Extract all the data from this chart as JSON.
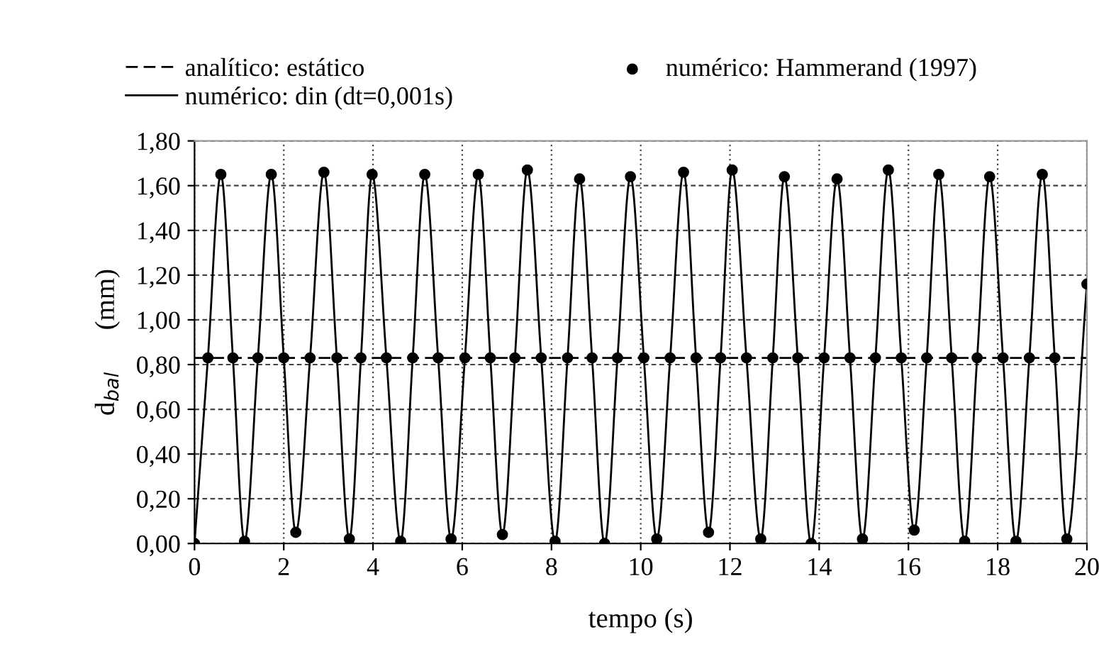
{
  "chart_data": {
    "type": "line",
    "xlabel": "tempo (s)",
    "ylabel": "d$_{bal}$      (mm)",
    "xlim": [
      0,
      20
    ],
    "xticks": [
      0,
      2,
      4,
      6,
      8,
      10,
      12,
      14,
      16,
      18,
      20
    ],
    "ylim": [
      0,
      1.8
    ],
    "yticks": [
      {
        "value": 0,
        "label": "0,00"
      },
      {
        "value": 0.2,
        "label": "0,20"
      },
      {
        "value": 0.4,
        "label": "0,40"
      },
      {
        "value": 0.6,
        "label": "0,60"
      },
      {
        "value": 0.8,
        "label": "0,80"
      },
      {
        "value": 1.0,
        "label": "1,00"
      },
      {
        "value": 1.2,
        "label": "1,20"
      },
      {
        "value": 1.4,
        "label": "1,40"
      },
      {
        "value": 1.6,
        "label": "1,60"
      },
      {
        "value": 1.8,
        "label": "1,80"
      }
    ],
    "grid": true,
    "legend": "top",
    "series": [
      {
        "name": "analítico: estático",
        "line_style": "dashed",
        "marker": "none",
        "color": "#000000",
        "x": [
          0,
          20
        ],
        "values": [
          0.83,
          0.83
        ]
      },
      {
        "name": "numérico: din (dt=0,001s)",
        "line_style": "solid",
        "marker": "none",
        "color": "#000000",
        "x": [
          0,
          0.3,
          0.59,
          0.86,
          1.12,
          1.42,
          1.72,
          2.0,
          2.27,
          2.59,
          2.9,
          3.19,
          3.47,
          3.73,
          3.98,
          4.3,
          4.62,
          4.89,
          5.16,
          5.46,
          5.75,
          6.06,
          6.36,
          6.63,
          6.9,
          7.18,
          7.46,
          7.77,
          8.08,
          8.36,
          8.63,
          8.91,
          9.19,
          9.48,
          9.77,
          10.07,
          10.36,
          10.66,
          10.96,
          11.24,
          11.52,
          11.79,
          12.05,
          12.37,
          12.69,
          12.96,
          13.22,
          13.52,
          13.82,
          14.11,
          14.4,
          14.69,
          14.97,
          15.26,
          15.55,
          15.84,
          16.13,
          16.41,
          16.68,
          16.97,
          17.26,
          17.54,
          17.82,
          18.12,
          18.41,
          18.71,
          19.0,
          19.28,
          19.55,
          20
        ],
        "values": [
          0.0,
          0.83,
          1.65,
          0.83,
          0.01,
          0.83,
          1.65,
          0.83,
          0.05,
          0.83,
          1.66,
          0.83,
          0.02,
          0.83,
          1.65,
          0.83,
          0.01,
          0.83,
          1.65,
          0.83,
          0.02,
          0.83,
          1.65,
          0.83,
          0.04,
          0.83,
          1.67,
          0.83,
          0.01,
          0.83,
          1.63,
          0.83,
          0.0,
          0.83,
          1.64,
          0.83,
          0.02,
          0.83,
          1.66,
          0.83,
          0.05,
          0.83,
          1.67,
          0.83,
          0.02,
          0.83,
          1.64,
          0.83,
          0.0,
          0.83,
          1.63,
          0.83,
          0.02,
          0.83,
          1.67,
          0.83,
          0.06,
          0.83,
          1.65,
          0.83,
          0.01,
          0.83,
          1.64,
          0.83,
          0.01,
          0.83,
          1.65,
          0.83,
          0.02,
          1.16
        ]
      },
      {
        "name": "numérico: Hammerand (1997)",
        "type": "scatter",
        "marker": "circle",
        "color": "#000000",
        "x": [
          0,
          0.3,
          0.59,
          0.86,
          1.12,
          1.42,
          1.72,
          2.0,
          2.27,
          2.59,
          2.9,
          3.19,
          3.47,
          3.73,
          3.98,
          4.3,
          4.62,
          4.89,
          5.16,
          5.46,
          5.75,
          6.06,
          6.36,
          6.63,
          6.9,
          7.18,
          7.46,
          7.77,
          8.08,
          8.36,
          8.63,
          8.91,
          9.19,
          9.48,
          9.77,
          10.07,
          10.36,
          10.66,
          10.96,
          11.24,
          11.52,
          11.79,
          12.05,
          12.37,
          12.69,
          12.96,
          13.22,
          13.52,
          13.82,
          14.11,
          14.4,
          14.69,
          14.97,
          15.26,
          15.55,
          15.84,
          16.13,
          16.41,
          16.68,
          16.97,
          17.26,
          17.54,
          17.82,
          18.12,
          18.41,
          18.71,
          19.0,
          19.28,
          19.55,
          20
        ],
        "values": [
          0.0,
          0.83,
          1.65,
          0.83,
          0.01,
          0.83,
          1.65,
          0.83,
          0.05,
          0.83,
          1.66,
          0.83,
          0.02,
          0.83,
          1.65,
          0.83,
          0.01,
          0.83,
          1.65,
          0.83,
          0.02,
          0.83,
          1.65,
          0.83,
          0.04,
          0.83,
          1.67,
          0.83,
          0.01,
          0.83,
          1.63,
          0.83,
          0.0,
          0.83,
          1.64,
          0.83,
          0.02,
          0.83,
          1.66,
          0.83,
          0.05,
          0.83,
          1.67,
          0.83,
          0.02,
          0.83,
          1.64,
          0.83,
          0.0,
          0.83,
          1.63,
          0.83,
          0.02,
          0.83,
          1.67,
          0.83,
          0.06,
          0.83,
          1.65,
          0.83,
          0.01,
          0.83,
          1.64,
          0.83,
          0.01,
          0.83,
          1.65,
          0.83,
          0.02,
          1.16
        ]
      }
    ]
  }
}
